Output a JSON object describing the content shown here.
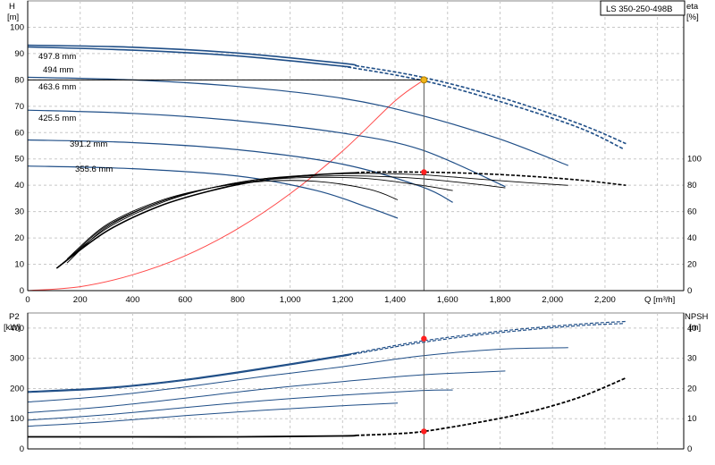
{
  "chart_data": [
    {
      "type": "line",
      "title": "LS 350-250-498B",
      "ylabel_left": "H",
      "ylabel_left_unit": "[m]",
      "ylabel_right": "eta",
      "ylabel_right_unit": "[%]",
      "xlabel": "Q [m³/h]",
      "xlim": [
        0,
        2500
      ],
      "ylim_left": [
        0,
        110
      ],
      "ylim_right": [
        0,
        110
      ],
      "x_ticks": [
        "0",
        "200",
        "400",
        "600",
        "800",
        "1,000",
        "1,200",
        "1,400",
        "1,600",
        "1,800",
        "2,000",
        "2,200"
      ],
      "y_ticks_left": [
        "0",
        "10",
        "20",
        "30",
        "40",
        "50",
        "60",
        "70",
        "80",
        "90",
        "100"
      ],
      "y_ticks_right": [
        "0",
        "20",
        "40",
        "60",
        "80",
        "100"
      ],
      "grid": true,
      "head_curves": [
        {
          "name": "497.8 mm",
          "x": [
            0,
            400,
            800,
            1200,
            1500,
            1800,
            2100,
            2280
          ],
          "y": [
            93.2,
            92.4,
            90.2,
            86.3,
            81.1,
            73.4,
            63.4,
            55.8
          ],
          "dashed_from": 1250
        },
        {
          "name": "494 mm",
          "x": [
            0,
            400,
            800,
            1200,
            1500,
            1800,
            2100,
            2270
          ],
          "y": [
            92.5,
            91.3,
            89.1,
            85.2,
            79.9,
            71.8,
            61.9,
            53.8
          ],
          "dashed_from": 1200
        },
        {
          "name": "463.6 mm",
          "x": [
            0,
            400,
            800,
            1200,
            1500,
            1800,
            2060
          ],
          "y": [
            81.0,
            80.0,
            77.5,
            73.0,
            66.5,
            57.5,
            47.5
          ]
        },
        {
          "name": "425.5 mm",
          "x": [
            0,
            400,
            800,
            1200,
            1500,
            1820
          ],
          "y": [
            68.5,
            67.3,
            64.5,
            59.8,
            53.5,
            39.5
          ]
        },
        {
          "name": "391.2 mm",
          "x": [
            0,
            400,
            800,
            1200,
            1500,
            1620
          ],
          "y": [
            57.2,
            56.2,
            53.5,
            48.0,
            39.5,
            33.5
          ]
        },
        {
          "name": "355.6 mm",
          "x": [
            0,
            400,
            800,
            1100,
            1300,
            1410
          ],
          "y": [
            47.3,
            46.3,
            43.5,
            38.0,
            31.5,
            27.5
          ]
        }
      ],
      "efficiency_curves": [
        {
          "x": [
            110,
            300,
            500,
            700,
            900,
            1100,
            1300,
            1500,
            1700,
            1900,
            2100,
            2280
          ],
          "y": [
            8.5,
            22.5,
            32.0,
            38.0,
            42.0,
            44.0,
            45.0,
            45.0,
            44.5,
            43.5,
            42.0,
            40.0
          ],
          "dashed_from": 1250
        },
        {
          "x": [
            110,
            300,
            500,
            700,
            900,
            1100,
            1300,
            1500,
            1700,
            1900,
            2060
          ],
          "y": [
            8.5,
            23.5,
            33.0,
            39.0,
            42.5,
            44.0,
            44.5,
            44.0,
            42.5,
            41.0,
            40.0
          ]
        },
        {
          "x": [
            150,
            300,
            500,
            700,
            900,
            1100,
            1300,
            1500,
            1700,
            1820
          ],
          "y": [
            10.5,
            24.0,
            33.5,
            39.0,
            42.5,
            43.5,
            43.5,
            42.5,
            40.5,
            39.0
          ]
        },
        {
          "x": [
            150,
            300,
            500,
            700,
            900,
            1100,
            1300,
            1500,
            1620
          ],
          "y": [
            11.5,
            24.5,
            33.5,
            39.0,
            42.0,
            43.0,
            42.5,
            40.0,
            38.0
          ]
        },
        {
          "x": [
            150,
            300,
            500,
            700,
            900,
            1100,
            1300,
            1410
          ],
          "y": [
            12.0,
            25.0,
            34.0,
            39.0,
            41.5,
            41.5,
            38.5,
            34.5
          ]
        }
      ],
      "system_curve": {
        "x": [
          0,
          200,
          400,
          600,
          800,
          1000,
          1200,
          1400,
          1510
        ],
        "y": [
          0,
          1.5,
          6,
          13.2,
          23.5,
          36.8,
          53.0,
          72.0,
          80.0
        ]
      },
      "operating_point": {
        "x": 1510,
        "y": 80
      },
      "efficiency_point": {
        "x": 1510,
        "y": 45
      }
    },
    {
      "type": "line",
      "ylabel_left": "P2",
      "ylabel_left_unit": "[kW]",
      "ylabel_right": "NPSH",
      "ylabel_right_unit": "[m]",
      "xlim": [
        0,
        2500
      ],
      "ylim_left": [
        0,
        450
      ],
      "ylim_right": [
        0,
        45
      ],
      "y_ticks_left": [
        "0",
        "100",
        "200",
        "300",
        "400"
      ],
      "y_ticks_right": [
        "0",
        "10",
        "20",
        "30",
        "40"
      ],
      "grid": true,
      "power_curves": [
        {
          "x": [
            0,
            300,
            600,
            900,
            1200,
            1500,
            1800,
            2100,
            2280
          ],
          "y": [
            190,
            203,
            230,
            268,
            310,
            357,
            390,
            413,
            422
          ],
          "dashed_from": 1250
        },
        {
          "x": [
            0,
            300,
            600,
            900,
            1200,
            1500,
            1800,
            2100,
            2270
          ],
          "y": [
            187,
            200,
            227,
            265,
            307,
            352,
            385,
            408,
            415
          ],
          "dashed_from": 1200
        },
        {
          "x": [
            0,
            300,
            600,
            900,
            1200,
            1500,
            1800,
            2060
          ],
          "y": [
            155,
            175,
            205,
            240,
            272,
            308,
            330,
            335
          ]
        },
        {
          "x": [
            0,
            300,
            600,
            900,
            1200,
            1500,
            1820
          ],
          "y": [
            120,
            140,
            168,
            198,
            223,
            245,
            258
          ]
        },
        {
          "x": [
            0,
            300,
            600,
            900,
            1200,
            1500,
            1620
          ],
          "y": [
            95,
            113,
            137,
            160,
            178,
            193,
            195
          ]
        },
        {
          "x": [
            0,
            300,
            600,
            900,
            1200,
            1410
          ],
          "y": [
            75,
            90,
            110,
            128,
            143,
            152
          ]
        }
      ],
      "npsh_curve": {
        "x": [
          0,
          400,
          800,
          1200,
          1400,
          1510,
          1700,
          1900,
          2100,
          2280
        ],
        "y": [
          4.0,
          4.0,
          4.0,
          4.3,
          5.0,
          5.8,
          8.5,
          12.0,
          17.0,
          23.5
        ],
        "dashed_from": 1250
      },
      "power_point": {
        "x": 1510,
        "y": 365
      },
      "npsh_point": {
        "x": 1510,
        "y": 5.8
      }
    }
  ],
  "colors": {
    "curve_blue": "#1f4e87",
    "system_red": "#ff4a4a",
    "marker_red": "#ff2020",
    "marker_gold": "#f0b419",
    "operating_line": "#000000"
  }
}
